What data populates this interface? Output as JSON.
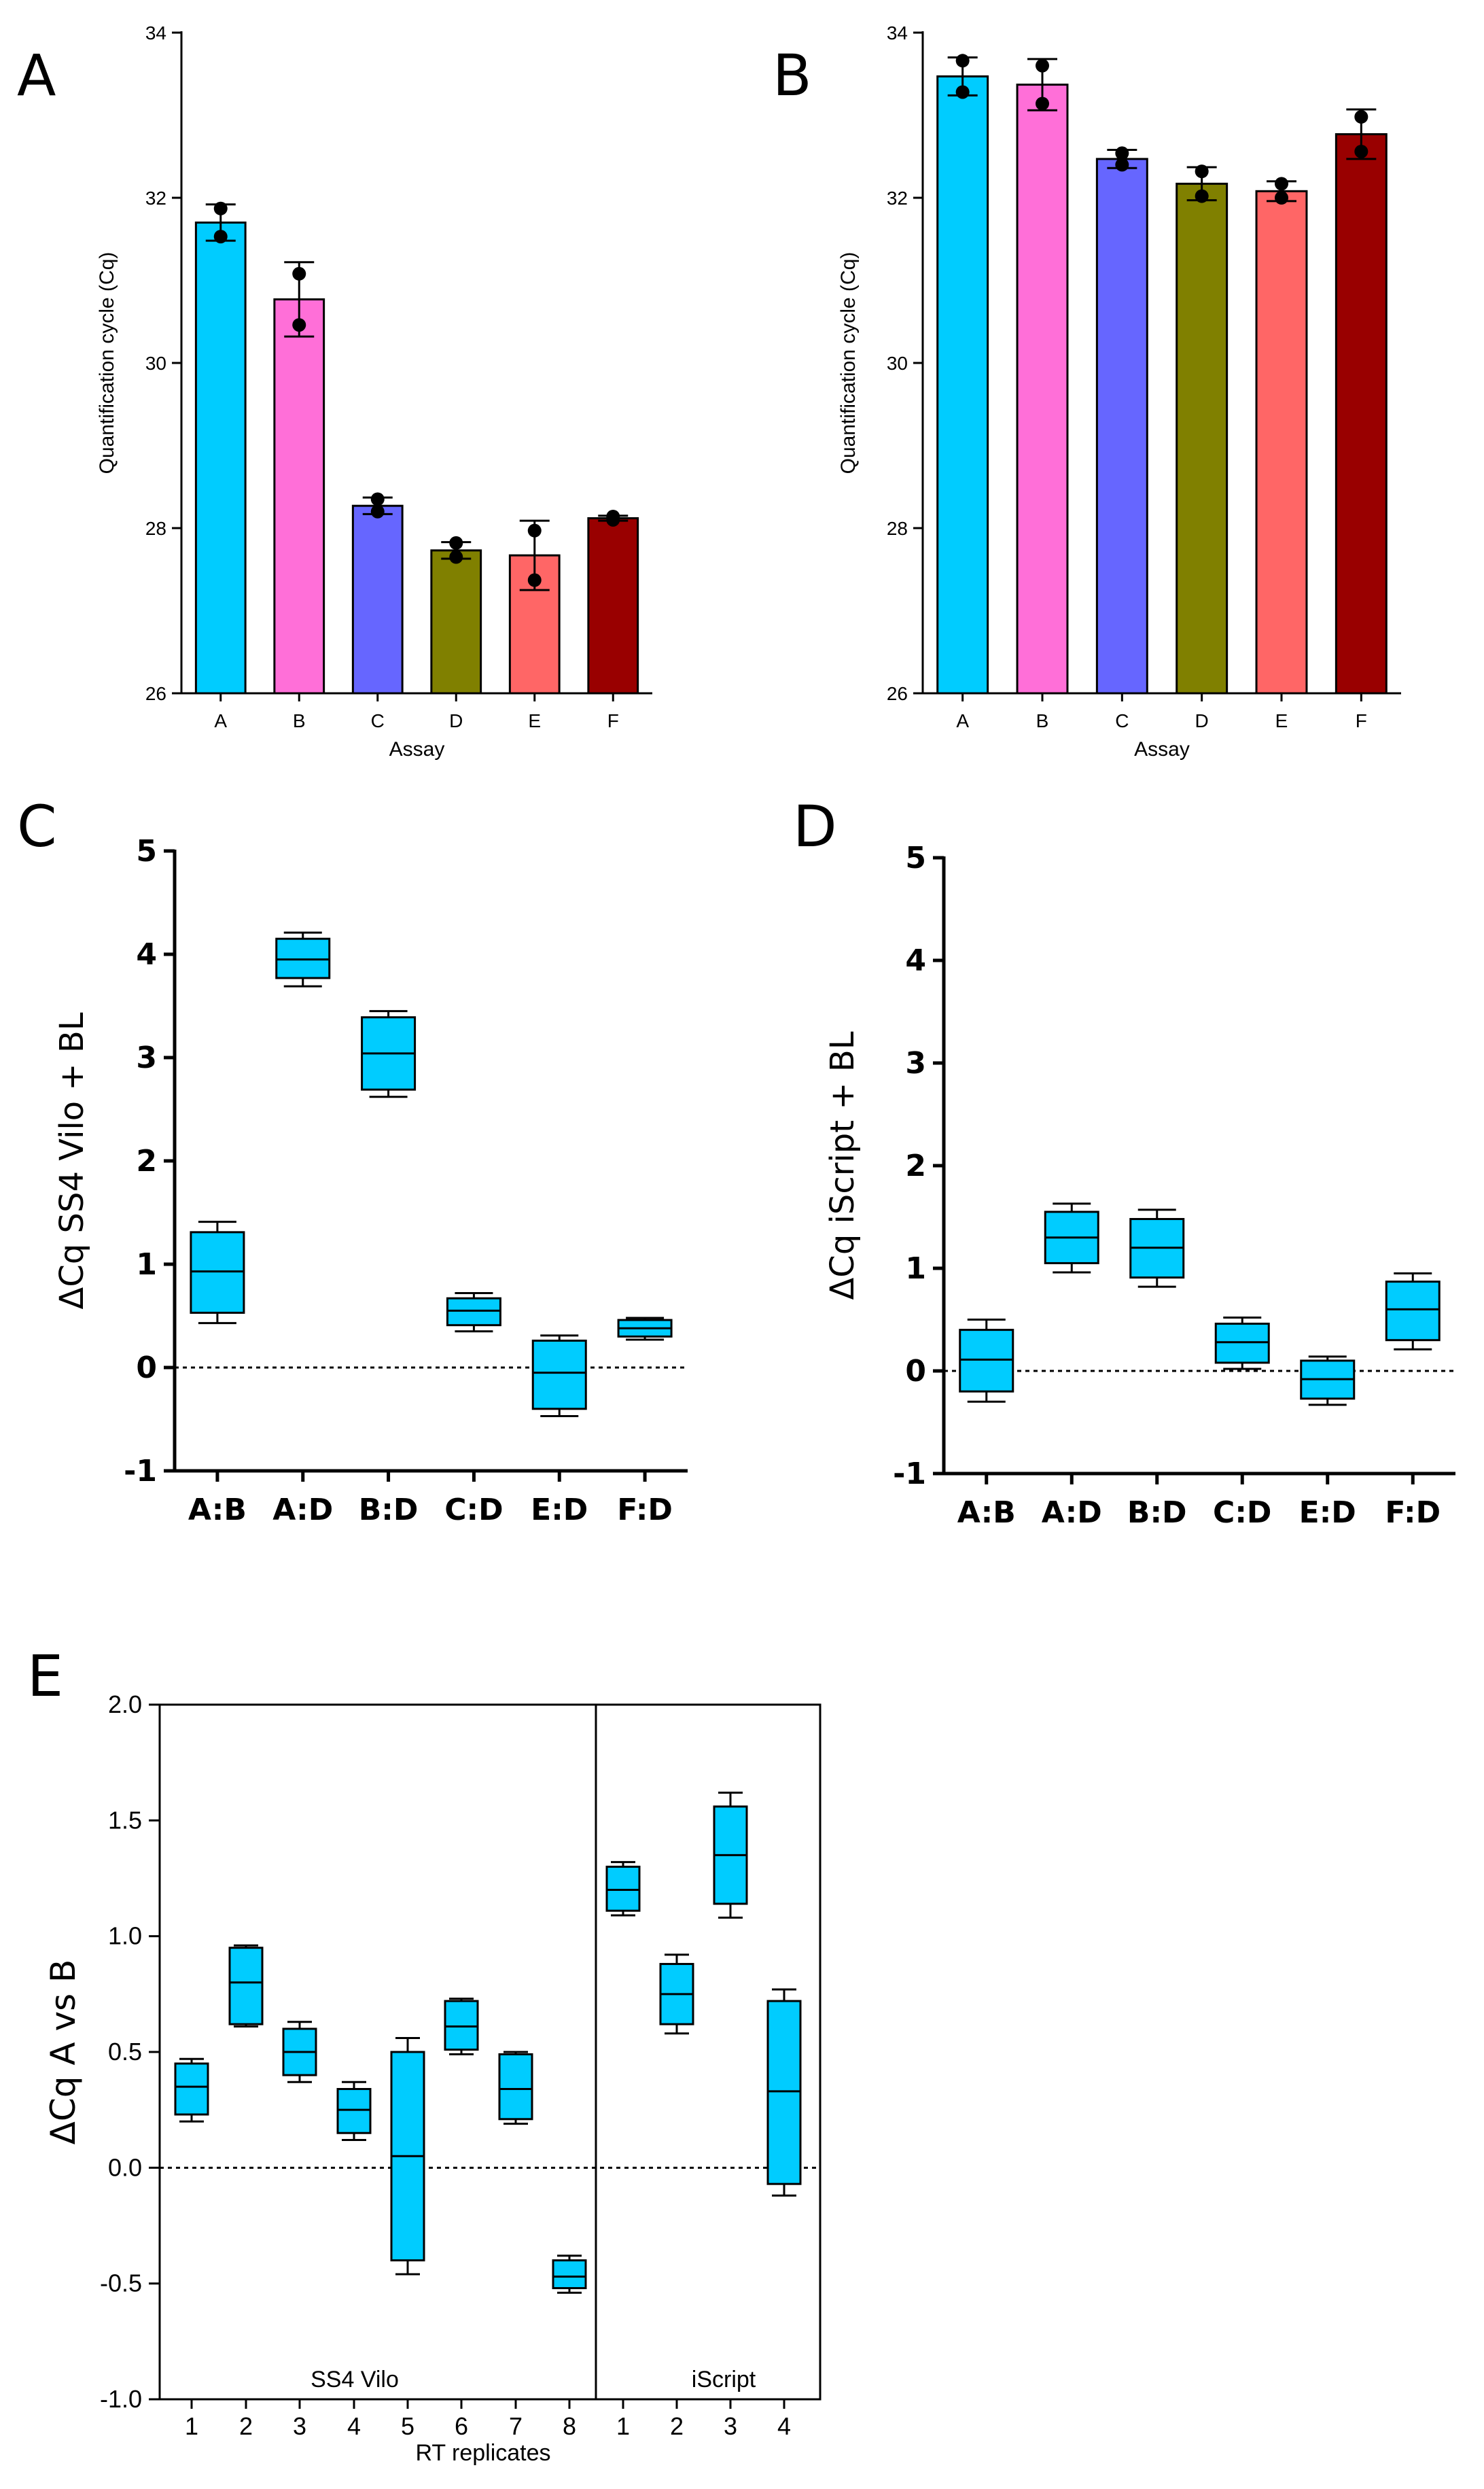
{
  "panels": {
    "A": "A",
    "B": "B",
    "C": "C",
    "D": "D",
    "E": "E"
  },
  "colors": {
    "A": "#00CCFF",
    "B": "#FF6FD8",
    "C": "#6666FF",
    "D": "#808000",
    "E": "#FF6666",
    "F": "#990000",
    "box": "#00CCFF"
  },
  "chart_data": [
    {
      "panel": "A",
      "type": "bar",
      "xlabel": "Assay",
      "ylabel": "Quantification cycle (Cq)",
      "ylim": [
        26,
        34
      ],
      "yticks": [
        26,
        28,
        30,
        32,
        34
      ],
      "categories": [
        "A",
        "B",
        "C",
        "D",
        "E",
        "F"
      ],
      "values": [
        31.7,
        30.77,
        28.27,
        27.73,
        27.67,
        28.12
      ],
      "error": [
        [
          31.48,
          31.92
        ],
        [
          30.32,
          31.22
        ],
        [
          28.17,
          28.37
        ],
        [
          27.63,
          27.83
        ],
        [
          27.25,
          28.09
        ],
        [
          28.09,
          28.15
        ]
      ],
      "points": [
        [
          31.87,
          31.53
        ],
        [
          31.08,
          30.46
        ],
        [
          28.35,
          28.2
        ],
        [
          27.82,
          27.65
        ],
        [
          27.97,
          27.37
        ],
        [
          28.1,
          28.14
        ]
      ]
    },
    {
      "panel": "B",
      "type": "bar",
      "xlabel": "Assay",
      "ylabel": "Quantification cycle (Cq)",
      "ylim": [
        26,
        34
      ],
      "yticks": [
        26,
        28,
        30,
        32,
        34
      ],
      "categories": [
        "A",
        "B",
        "C",
        "D",
        "E",
        "F"
      ],
      "values": [
        33.47,
        33.37,
        32.47,
        32.17,
        32.08,
        32.77
      ],
      "error": [
        [
          33.24,
          33.7
        ],
        [
          33.06,
          33.68
        ],
        [
          32.36,
          32.58
        ],
        [
          31.97,
          32.37
        ],
        [
          31.96,
          32.2
        ],
        [
          32.47,
          33.07
        ]
      ],
      "points": [
        [
          33.66,
          33.28
        ],
        [
          33.6,
          33.14
        ],
        [
          32.54,
          32.4
        ],
        [
          32.32,
          32.02
        ],
        [
          32.17,
          32.0
        ],
        [
          32.98,
          32.56
        ]
      ]
    },
    {
      "panel": "C",
      "type": "box",
      "ylabel": "ΔCq SS4 Vilo + BL",
      "ylim": [
        -1,
        5
      ],
      "yticks": [
        "-1",
        "0",
        "1",
        "2",
        "3",
        "4",
        "5"
      ],
      "refline": 0,
      "categories": [
        "A:B",
        "A:D",
        "B:D",
        "C:D",
        "E:D",
        "F:D"
      ],
      "boxes": [
        {
          "min": 0.43,
          "q1": 0.53,
          "median": 0.93,
          "q3": 1.31,
          "max": 1.41
        },
        {
          "min": 3.69,
          "q1": 3.77,
          "median": 3.95,
          "q3": 4.15,
          "max": 4.21
        },
        {
          "min": 2.62,
          "q1": 2.69,
          "median": 3.04,
          "q3": 3.39,
          "max": 3.45
        },
        {
          "min": 0.35,
          "q1": 0.41,
          "median": 0.55,
          "q3": 0.67,
          "max": 0.72
        },
        {
          "min": -0.47,
          "q1": -0.4,
          "median": -0.05,
          "q3": 0.26,
          "max": 0.31
        },
        {
          "min": 0.27,
          "q1": 0.3,
          "median": 0.38,
          "q3": 0.46,
          "max": 0.48
        }
      ]
    },
    {
      "panel": "D",
      "type": "box",
      "ylabel": "ΔCq iScript + BL",
      "ylim": [
        -1,
        5
      ],
      "yticks": [
        "-1",
        "0",
        "1",
        "2",
        "3",
        "4",
        "5"
      ],
      "refline": 0,
      "categories": [
        "A:B",
        "A:D",
        "B:D",
        "C:D",
        "E:D",
        "F:D"
      ],
      "boxes": [
        {
          "min": -0.3,
          "q1": -0.2,
          "median": 0.11,
          "q3": 0.4,
          "max": 0.5
        },
        {
          "min": 0.96,
          "q1": 1.05,
          "median": 1.3,
          "q3": 1.55,
          "max": 1.63
        },
        {
          "min": 0.82,
          "q1": 0.91,
          "median": 1.2,
          "q3": 1.48,
          "max": 1.57
        },
        {
          "min": 0.02,
          "q1": 0.08,
          "median": 0.28,
          "q3": 0.46,
          "max": 0.52
        },
        {
          "min": -0.33,
          "q1": -0.27,
          "median": -0.08,
          "q3": 0.1,
          "max": 0.14
        },
        {
          "min": 0.21,
          "q1": 0.3,
          "median": 0.6,
          "q3": 0.87,
          "max": 0.95
        }
      ]
    },
    {
      "panel": "E",
      "type": "box",
      "ylabel": "ΔCq A vs B",
      "xlabel": "RT replicates",
      "ylim": [
        -1.0,
        2.0
      ],
      "yticks": [
        "-1.0",
        "-0.5",
        "0.0",
        "0.5",
        "1.0",
        "1.5",
        "2.0"
      ],
      "refline": 0,
      "groups": [
        {
          "name": "SS4 Vilo",
          "categories": [
            "1",
            "2",
            "3",
            "4",
            "5",
            "6",
            "7",
            "8"
          ]
        },
        {
          "name": "iScript",
          "categories": [
            "1",
            "2",
            "3",
            "4"
          ]
        }
      ],
      "boxes": [
        {
          "min": 0.2,
          "q1": 0.23,
          "median": 0.35,
          "q3": 0.45,
          "max": 0.47
        },
        {
          "min": 0.61,
          "q1": 0.62,
          "median": 0.8,
          "q3": 0.95,
          "max": 0.96
        },
        {
          "min": 0.37,
          "q1": 0.4,
          "median": 0.5,
          "q3": 0.6,
          "max": 0.63
        },
        {
          "min": 0.12,
          "q1": 0.15,
          "median": 0.25,
          "q3": 0.34,
          "max": 0.37
        },
        {
          "min": -0.46,
          "q1": -0.4,
          "median": 0.05,
          "q3": 0.5,
          "max": 0.56
        },
        {
          "min": 0.49,
          "q1": 0.51,
          "median": 0.61,
          "q3": 0.72,
          "max": 0.73
        },
        {
          "min": 0.19,
          "q1": 0.21,
          "median": 0.34,
          "q3": 0.49,
          "max": 0.5
        },
        {
          "min": -0.54,
          "q1": -0.52,
          "median": -0.47,
          "q3": -0.4,
          "max": -0.38
        },
        {
          "min": 1.09,
          "q1": 1.11,
          "median": 1.2,
          "q3": 1.3,
          "max": 1.32
        },
        {
          "min": 0.58,
          "q1": 0.62,
          "median": 0.75,
          "q3": 0.88,
          "max": 0.92
        },
        {
          "min": 1.08,
          "q1": 1.14,
          "median": 1.35,
          "q3": 1.56,
          "max": 1.62
        },
        {
          "min": -0.12,
          "q1": -0.07,
          "median": 0.33,
          "q3": 0.72,
          "max": 0.77
        }
      ]
    }
  ]
}
